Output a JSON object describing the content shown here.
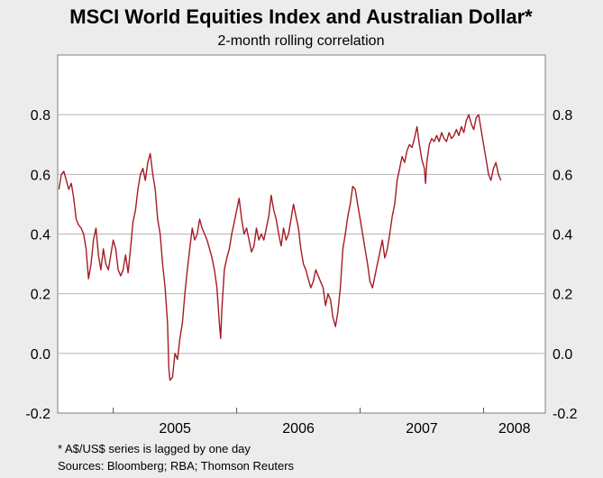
{
  "chart_data": {
    "type": "line",
    "title": "MSCI World Equities Index and Australian Dollar*",
    "subtitle": "2-month rolling correlation",
    "ylim": [
      -0.2,
      1.0
    ],
    "y_ticks": [
      "0.8",
      "0.6",
      "0.4",
      "0.2",
      "0.0",
      "-0.2"
    ],
    "y_tick_values": [
      0.8,
      0.6,
      0.4,
      0.2,
      0.0,
      -0.2
    ],
    "x_range": [
      2004.55,
      2008.5
    ],
    "x_year_boundaries": [
      2005,
      2006,
      2007,
      2008
    ],
    "x_labels": [
      {
        "label": "2005",
        "center": 2005.5
      },
      {
        "label": "2006",
        "center": 2006.5
      },
      {
        "label": "2007",
        "center": 2007.5
      },
      {
        "label": "2008",
        "center": 2008.25
      }
    ],
    "grid": true,
    "series": [
      {
        "name": "2-month rolling correlation",
        "color": "#a51c24",
        "points": [
          [
            2004.56,
            0.55
          ],
          [
            2004.58,
            0.6
          ],
          [
            2004.6,
            0.61
          ],
          [
            2004.62,
            0.58
          ],
          [
            2004.64,
            0.55
          ],
          [
            2004.66,
            0.57
          ],
          [
            2004.68,
            0.52
          ],
          [
            2004.7,
            0.45
          ],
          [
            2004.72,
            0.43
          ],
          [
            2004.74,
            0.42
          ],
          [
            2004.76,
            0.4
          ],
          [
            2004.78,
            0.35
          ],
          [
            2004.8,
            0.25
          ],
          [
            2004.82,
            0.3
          ],
          [
            2004.84,
            0.38
          ],
          [
            2004.86,
            0.42
          ],
          [
            2004.88,
            0.33
          ],
          [
            2004.9,
            0.28
          ],
          [
            2004.92,
            0.35
          ],
          [
            2004.94,
            0.3
          ],
          [
            2004.96,
            0.28
          ],
          [
            2004.98,
            0.33
          ],
          [
            2005.0,
            0.38
          ],
          [
            2005.02,
            0.35
          ],
          [
            2005.04,
            0.28
          ],
          [
            2005.06,
            0.26
          ],
          [
            2005.08,
            0.28
          ],
          [
            2005.1,
            0.33
          ],
          [
            2005.12,
            0.27
          ],
          [
            2005.14,
            0.35
          ],
          [
            2005.16,
            0.44
          ],
          [
            2005.18,
            0.48
          ],
          [
            2005.2,
            0.55
          ],
          [
            2005.22,
            0.6
          ],
          [
            2005.24,
            0.62
          ],
          [
            2005.26,
            0.58
          ],
          [
            2005.28,
            0.64
          ],
          [
            2005.3,
            0.67
          ],
          [
            2005.32,
            0.6
          ],
          [
            2005.34,
            0.55
          ],
          [
            2005.36,
            0.45
          ],
          [
            2005.38,
            0.4
          ],
          [
            2005.4,
            0.3
          ],
          [
            2005.42,
            0.22
          ],
          [
            2005.44,
            0.1
          ],
          [
            2005.45,
            -0.05
          ],
          [
            2005.46,
            -0.09
          ],
          [
            2005.48,
            -0.08
          ],
          [
            2005.5,
            0.0
          ],
          [
            2005.52,
            -0.02
          ],
          [
            2005.54,
            0.05
          ],
          [
            2005.56,
            0.1
          ],
          [
            2005.58,
            0.2
          ],
          [
            2005.6,
            0.28
          ],
          [
            2005.62,
            0.35
          ],
          [
            2005.64,
            0.42
          ],
          [
            2005.66,
            0.38
          ],
          [
            2005.68,
            0.4
          ],
          [
            2005.7,
            0.45
          ],
          [
            2005.72,
            0.42
          ],
          [
            2005.74,
            0.4
          ],
          [
            2005.76,
            0.38
          ],
          [
            2005.78,
            0.35
          ],
          [
            2005.8,
            0.32
          ],
          [
            2005.82,
            0.28
          ],
          [
            2005.84,
            0.22
          ],
          [
            2005.86,
            0.1
          ],
          [
            2005.87,
            0.05
          ],
          [
            2005.88,
            0.15
          ],
          [
            2005.9,
            0.28
          ],
          [
            2005.92,
            0.32
          ],
          [
            2005.94,
            0.35
          ],
          [
            2005.96,
            0.4
          ],
          [
            2005.98,
            0.44
          ],
          [
            2006.0,
            0.48
          ],
          [
            2006.02,
            0.52
          ],
          [
            2006.04,
            0.45
          ],
          [
            2006.06,
            0.4
          ],
          [
            2006.08,
            0.42
          ],
          [
            2006.1,
            0.38
          ],
          [
            2006.12,
            0.34
          ],
          [
            2006.14,
            0.36
          ],
          [
            2006.16,
            0.42
          ],
          [
            2006.18,
            0.38
          ],
          [
            2006.2,
            0.4
          ],
          [
            2006.22,
            0.38
          ],
          [
            2006.24,
            0.42
          ],
          [
            2006.26,
            0.46
          ],
          [
            2006.28,
            0.53
          ],
          [
            2006.3,
            0.48
          ],
          [
            2006.32,
            0.45
          ],
          [
            2006.34,
            0.4
          ],
          [
            2006.36,
            0.36
          ],
          [
            2006.38,
            0.42
          ],
          [
            2006.4,
            0.38
          ],
          [
            2006.42,
            0.4
          ],
          [
            2006.44,
            0.45
          ],
          [
            2006.46,
            0.5
          ],
          [
            2006.48,
            0.46
          ],
          [
            2006.5,
            0.42
          ],
          [
            2006.52,
            0.35
          ],
          [
            2006.54,
            0.3
          ],
          [
            2006.56,
            0.28
          ],
          [
            2006.58,
            0.25
          ],
          [
            2006.6,
            0.22
          ],
          [
            2006.62,
            0.24
          ],
          [
            2006.64,
            0.28
          ],
          [
            2006.66,
            0.26
          ],
          [
            2006.68,
            0.24
          ],
          [
            2006.7,
            0.22
          ],
          [
            2006.72,
            0.16
          ],
          [
            2006.74,
            0.2
          ],
          [
            2006.76,
            0.18
          ],
          [
            2006.78,
            0.12
          ],
          [
            2006.8,
            0.09
          ],
          [
            2006.82,
            0.14
          ],
          [
            2006.84,
            0.22
          ],
          [
            2006.86,
            0.35
          ],
          [
            2006.88,
            0.4
          ],
          [
            2006.9,
            0.46
          ],
          [
            2006.92,
            0.5
          ],
          [
            2006.94,
            0.56
          ],
          [
            2006.96,
            0.55
          ],
          [
            2006.98,
            0.5
          ],
          [
            2007.0,
            0.45
          ],
          [
            2007.02,
            0.4
          ],
          [
            2007.04,
            0.35
          ],
          [
            2007.06,
            0.3
          ],
          [
            2007.08,
            0.24
          ],
          [
            2007.1,
            0.22
          ],
          [
            2007.12,
            0.26
          ],
          [
            2007.14,
            0.3
          ],
          [
            2007.16,
            0.34
          ],
          [
            2007.18,
            0.38
          ],
          [
            2007.2,
            0.32
          ],
          [
            2007.22,
            0.35
          ],
          [
            2007.24,
            0.4
          ],
          [
            2007.26,
            0.46
          ],
          [
            2007.28,
            0.5
          ],
          [
            2007.3,
            0.58
          ],
          [
            2007.32,
            0.62
          ],
          [
            2007.34,
            0.66
          ],
          [
            2007.36,
            0.64
          ],
          [
            2007.38,
            0.68
          ],
          [
            2007.4,
            0.7
          ],
          [
            2007.42,
            0.69
          ],
          [
            2007.44,
            0.72
          ],
          [
            2007.46,
            0.76
          ],
          [
            2007.48,
            0.7
          ],
          [
            2007.5,
            0.65
          ],
          [
            2007.52,
            0.62
          ],
          [
            2007.53,
            0.57
          ],
          [
            2007.54,
            0.64
          ],
          [
            2007.56,
            0.7
          ],
          [
            2007.58,
            0.72
          ],
          [
            2007.6,
            0.71
          ],
          [
            2007.62,
            0.73
          ],
          [
            2007.64,
            0.71
          ],
          [
            2007.66,
            0.74
          ],
          [
            2007.68,
            0.72
          ],
          [
            2007.7,
            0.71
          ],
          [
            2007.72,
            0.74
          ],
          [
            2007.74,
            0.72
          ],
          [
            2007.76,
            0.73
          ],
          [
            2007.78,
            0.75
          ],
          [
            2007.8,
            0.73
          ],
          [
            2007.82,
            0.76
          ],
          [
            2007.84,
            0.74
          ],
          [
            2007.86,
            0.78
          ],
          [
            2007.88,
            0.8
          ],
          [
            2007.9,
            0.77
          ],
          [
            2007.92,
            0.75
          ],
          [
            2007.94,
            0.79
          ],
          [
            2007.96,
            0.8
          ],
          [
            2007.98,
            0.75
          ],
          [
            2008.0,
            0.7
          ],
          [
            2008.02,
            0.65
          ],
          [
            2008.04,
            0.6
          ],
          [
            2008.06,
            0.58
          ],
          [
            2008.08,
            0.62
          ],
          [
            2008.1,
            0.64
          ],
          [
            2008.12,
            0.6
          ],
          [
            2008.14,
            0.58
          ]
        ]
      }
    ],
    "footnotes": [
      "*   A$/US$ series is lagged by one day",
      "Sources: Bloomberg; RBA; Thomson Reuters"
    ]
  },
  "colors": {
    "background": "#ececec",
    "plot_background": "#ffffff",
    "grid": "#b5b5b5",
    "line": "#a51c24"
  }
}
